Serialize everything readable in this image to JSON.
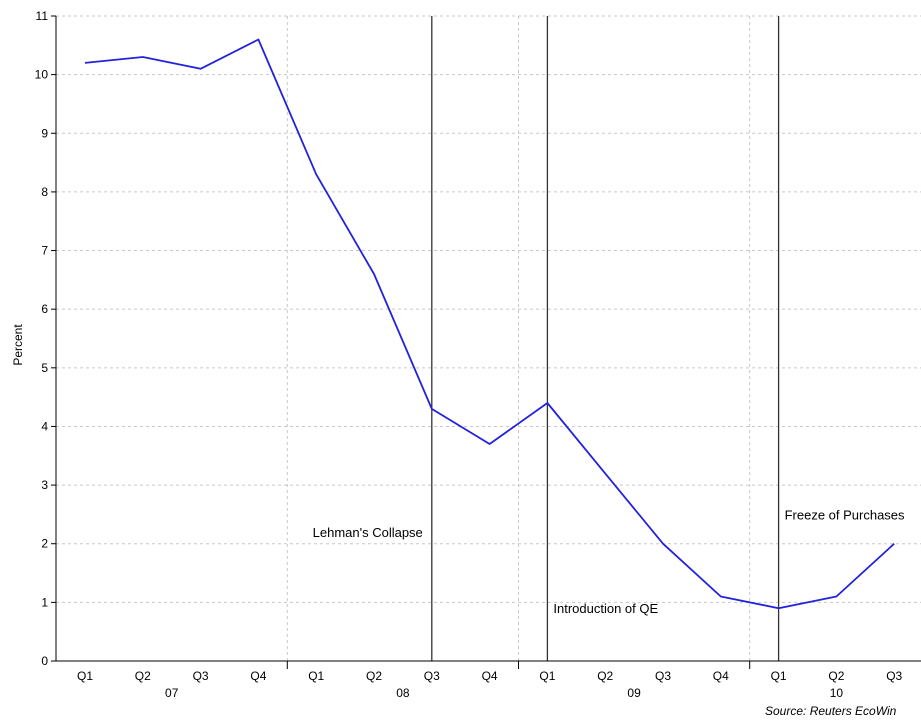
{
  "chart_data": {
    "type": "line",
    "ylabel": "Percent",
    "ylim": [
      0,
      11
    ],
    "yticks": [
      0,
      1,
      2,
      3,
      4,
      5,
      6,
      7,
      8,
      9,
      10,
      11
    ],
    "grid": true,
    "categories": [
      "Q1",
      "Q2",
      "Q3",
      "Q4",
      "Q1",
      "Q2",
      "Q3",
      "Q4",
      "Q1",
      "Q2",
      "Q3",
      "Q4",
      "Q1",
      "Q2",
      "Q3"
    ],
    "years": [
      {
        "label": "07",
        "start": 0,
        "end": 3
      },
      {
        "label": "08",
        "start": 4,
        "end": 7
      },
      {
        "label": "09",
        "start": 8,
        "end": 11
      },
      {
        "label": "10",
        "start": 12,
        "end": 14
      }
    ],
    "series": [
      {
        "color": "#2222dd",
        "values": [
          10.2,
          10.3,
          10.1,
          10.6,
          8.3,
          6.6,
          4.3,
          3.7,
          4.4,
          3.2,
          2.0,
          1.1,
          0.9,
          1.1,
          2.0
        ]
      }
    ],
    "events": [
      {
        "label": "Lehman's Collapse",
        "index": 6,
        "label_value": 2.2,
        "label_side": "left"
      },
      {
        "label": "Introduction of QE",
        "index": 8,
        "label_value": 0.9,
        "label_side": "right"
      },
      {
        "label": "Freeze of Purchases",
        "index": 12,
        "label_value": 2.5,
        "label_side": "right"
      }
    ],
    "source": "Source: Reuters EcoWin"
  }
}
